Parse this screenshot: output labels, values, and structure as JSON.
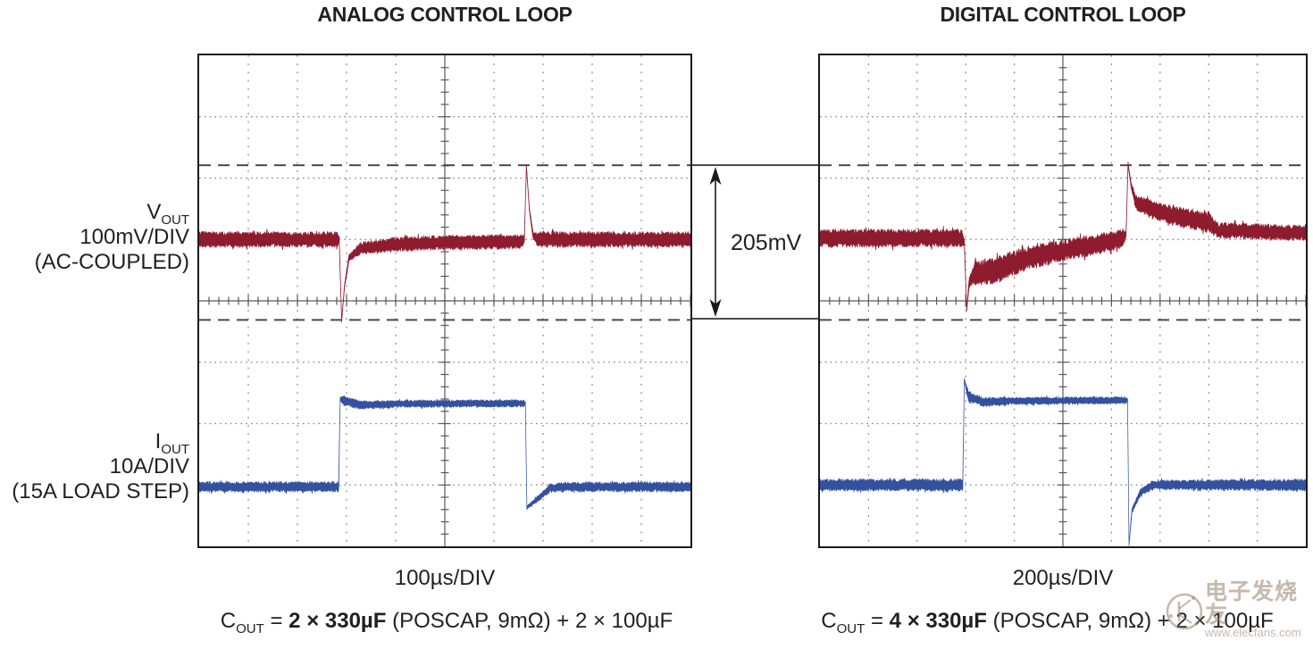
{
  "figure": {
    "vout_label": {
      "main": "V",
      "sub": "OUT",
      "line2": "100mV/DIV",
      "line3": "(AC-COUPLED)"
    },
    "iout_label": {
      "main": "I",
      "sub": "OUT",
      "line2": "10A/DIV",
      "line3": "(15A LOAD STEP)"
    },
    "annotation": {
      "delta_label": "205mV"
    },
    "captions": {
      "left": {
        "prefix": "C",
        "sub": "OUT",
        "eq": " = ",
        "bold": "2 × 330µF",
        "rest": " (POSCAP, 9mΩ) + 2 × 100µF"
      },
      "right": {
        "prefix": "C",
        "sub": "OUT",
        "eq": " = ",
        "bold": "4 × 330µF",
        "rest": " (POSCAP, 9mΩ) + 2 × 100µF"
      }
    },
    "watermark": {
      "cn": "电子发烧友",
      "url": "www.elecfans.com"
    }
  },
  "colors": {
    "vout": "#8E1B2E",
    "iout": "#34519F",
    "grid": "#808080",
    "axis": "#5a5a5a",
    "cursor_dash": "#4a4a4a",
    "border": "#1a1a1a"
  },
  "chart_data": [
    {
      "type": "line",
      "title": "ANALOG CONTROL LOOP",
      "xlabel": "100µs/DIV",
      "time_per_div": "100µs",
      "grid": {
        "cols": 10,
        "rows": 8,
        "style": "oscilloscope graticule, dotted lines, ticked center axes"
      },
      "cursor_lines_div": [
        1.79,
        4.31
      ],
      "cursor_measurement": "205mV peak-to-peak between dashed cursors",
      "series": [
        {
          "name": "VOUT 100mV/DIV (AC-COUPLED)",
          "color_key": "vout",
          "description": "flat noisy band; dip at load step rise (t=2.87div) to 4.33div; recovers quickly; spike at load release (t=6.65div) up to 1.80div; fast settle",
          "breakpoints_div": [
            [
              0,
              3.0,
              0.13
            ],
            [
              2.8,
              3.0,
              0.13
            ],
            [
              2.85,
              3.0,
              0.06
            ],
            [
              2.9,
              4.33,
              0.02
            ],
            [
              2.96,
              3.75,
              0.03
            ],
            [
              3.05,
              3.3,
              0.06
            ],
            [
              3.3,
              3.14,
              0.1
            ],
            [
              4.0,
              3.08,
              0.12
            ],
            [
              5.0,
              3.05,
              0.12
            ],
            [
              6.55,
              3.04,
              0.12
            ],
            [
              6.62,
              3.0,
              0.05
            ],
            [
              6.66,
              1.8,
              0.02
            ],
            [
              6.72,
              2.5,
              0.03
            ],
            [
              6.8,
              2.95,
              0.06
            ],
            [
              6.9,
              3.0,
              0.13
            ],
            [
              10,
              3.0,
              0.13
            ]
          ]
        },
        {
          "name": "IOUT 10A/DIV (15A LOAD STEP)",
          "color_key": "iout",
          "description": "square load-current step: low until 2.87div, high 2.87-6.65div, low after with small undershoot",
          "breakpoints_div": [
            [
              0,
              7.03,
              0.085
            ],
            [
              2.84,
              7.03,
              0.085
            ],
            [
              2.87,
              5.6,
              0.03
            ],
            [
              2.95,
              5.63,
              0.08
            ],
            [
              3.3,
              5.7,
              0.07
            ],
            [
              4.0,
              5.68,
              0.06
            ],
            [
              6.6,
              5.67,
              0.06
            ],
            [
              6.64,
              5.67,
              0.03
            ],
            [
              6.67,
              7.37,
              0.03
            ],
            [
              6.85,
              7.25,
              0.05
            ],
            [
              7.15,
              7.05,
              0.07
            ],
            [
              7.5,
              7.03,
              0.08
            ],
            [
              10,
              7.03,
              0.085
            ]
          ]
        }
      ]
    },
    {
      "type": "line",
      "title": "DIGITAL CONTROL LOOP",
      "xlabel": "200µs/DIV",
      "time_per_div": "200µs",
      "grid": {
        "cols": 10,
        "rows": 8,
        "style": "oscilloscope graticule, dotted lines, ticked center axes"
      },
      "cursor_lines_div": [
        1.79,
        4.31
      ],
      "cursor_measurement": "205mV peak-to-peak between dashed cursors",
      "series": [
        {
          "name": "VOUT 100mV/DIV (AC-COUPLED)",
          "color_key": "vout",
          "description": "dip at load step (t=2.98div) to 4.15div with long noisy recovery ramp; spike at release (t=6.34div) to 1.76div followed by slow noisy decay to baseline",
          "breakpoints_div": [
            [
              0,
              2.98,
              0.15
            ],
            [
              2.93,
              2.98,
              0.15
            ],
            [
              2.97,
              3.05,
              0.06
            ],
            [
              3.02,
              4.15,
              0.03
            ],
            [
              3.07,
              3.7,
              0.08
            ],
            [
              3.2,
              3.55,
              0.2
            ],
            [
              3.6,
              3.5,
              0.22
            ],
            [
              4.2,
              3.32,
              0.2
            ],
            [
              5.0,
              3.18,
              0.18
            ],
            [
              5.8,
              3.06,
              0.17
            ],
            [
              6.25,
              2.98,
              0.15
            ],
            [
              6.3,
              2.9,
              0.05
            ],
            [
              6.34,
              1.76,
              0.03
            ],
            [
              6.4,
              2.1,
              0.05
            ],
            [
              6.5,
              2.4,
              0.12
            ],
            [
              6.8,
              2.5,
              0.16
            ],
            [
              7.3,
              2.62,
              0.16
            ],
            [
              7.8,
              2.7,
              0.17
            ],
            [
              8.0,
              2.72,
              0.18
            ],
            [
              8.2,
              2.85,
              0.13
            ],
            [
              9.0,
              2.87,
              0.13
            ],
            [
              10,
              2.9,
              0.13
            ]
          ]
        },
        {
          "name": "IOUT 10A/DIV (15A LOAD STEP)",
          "color_key": "iout",
          "description": "square load-current step with overshoot on rise (t=2.98div) and deep falling edge at release (t=6.34div) reaching plot bottom, then recovery",
          "breakpoints_div": [
            [
              0,
              7.0,
              0.1
            ],
            [
              2.94,
              7.0,
              0.1
            ],
            [
              2.97,
              5.28,
              0.03
            ],
            [
              3.05,
              5.55,
              0.09
            ],
            [
              3.35,
              5.65,
              0.08
            ],
            [
              4.0,
              5.63,
              0.06
            ],
            [
              6.28,
              5.62,
              0.06
            ],
            [
              6.33,
              5.62,
              0.03
            ],
            [
              6.36,
              7.98,
              0.02
            ],
            [
              6.42,
              7.42,
              0.04
            ],
            [
              6.6,
              7.12,
              0.06
            ],
            [
              6.85,
              7.0,
              0.08
            ],
            [
              10,
              7.0,
              0.1
            ]
          ]
        }
      ]
    }
  ]
}
